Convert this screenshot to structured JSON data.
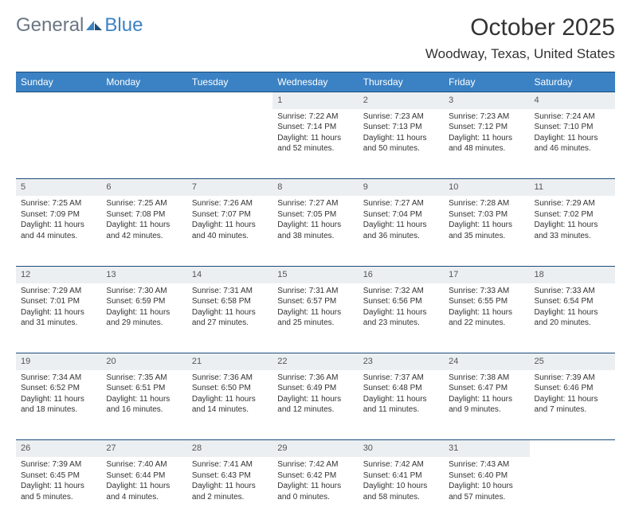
{
  "logo": {
    "text1": "General",
    "text2": "Blue"
  },
  "title": "October 2025",
  "location": "Woodway, Texas, United States",
  "colors": {
    "header_bg": "#3b82c4",
    "header_text": "#ffffff",
    "border": "#1b4c7a",
    "daynum_bg": "#eceff1",
    "text": "#333333",
    "logo_gray": "#6b7684",
    "logo_blue": "#3b82c4",
    "page_bg": "#ffffff"
  },
  "weekdays": [
    "Sunday",
    "Monday",
    "Tuesday",
    "Wednesday",
    "Thursday",
    "Friday",
    "Saturday"
  ],
  "weeks": [
    [
      null,
      null,
      null,
      {
        "d": "1",
        "sr": "7:22 AM",
        "ss": "7:14 PM",
        "dl": "11 hours and 52 minutes."
      },
      {
        "d": "2",
        "sr": "7:23 AM",
        "ss": "7:13 PM",
        "dl": "11 hours and 50 minutes."
      },
      {
        "d": "3",
        "sr": "7:23 AM",
        "ss": "7:12 PM",
        "dl": "11 hours and 48 minutes."
      },
      {
        "d": "4",
        "sr": "7:24 AM",
        "ss": "7:10 PM",
        "dl": "11 hours and 46 minutes."
      }
    ],
    [
      {
        "d": "5",
        "sr": "7:25 AM",
        "ss": "7:09 PM",
        "dl": "11 hours and 44 minutes."
      },
      {
        "d": "6",
        "sr": "7:25 AM",
        "ss": "7:08 PM",
        "dl": "11 hours and 42 minutes."
      },
      {
        "d": "7",
        "sr": "7:26 AM",
        "ss": "7:07 PM",
        "dl": "11 hours and 40 minutes."
      },
      {
        "d": "8",
        "sr": "7:27 AM",
        "ss": "7:05 PM",
        "dl": "11 hours and 38 minutes."
      },
      {
        "d": "9",
        "sr": "7:27 AM",
        "ss": "7:04 PM",
        "dl": "11 hours and 36 minutes."
      },
      {
        "d": "10",
        "sr": "7:28 AM",
        "ss": "7:03 PM",
        "dl": "11 hours and 35 minutes."
      },
      {
        "d": "11",
        "sr": "7:29 AM",
        "ss": "7:02 PM",
        "dl": "11 hours and 33 minutes."
      }
    ],
    [
      {
        "d": "12",
        "sr": "7:29 AM",
        "ss": "7:01 PM",
        "dl": "11 hours and 31 minutes."
      },
      {
        "d": "13",
        "sr": "7:30 AM",
        "ss": "6:59 PM",
        "dl": "11 hours and 29 minutes."
      },
      {
        "d": "14",
        "sr": "7:31 AM",
        "ss": "6:58 PM",
        "dl": "11 hours and 27 minutes."
      },
      {
        "d": "15",
        "sr": "7:31 AM",
        "ss": "6:57 PM",
        "dl": "11 hours and 25 minutes."
      },
      {
        "d": "16",
        "sr": "7:32 AM",
        "ss": "6:56 PM",
        "dl": "11 hours and 23 minutes."
      },
      {
        "d": "17",
        "sr": "7:33 AM",
        "ss": "6:55 PM",
        "dl": "11 hours and 22 minutes."
      },
      {
        "d": "18",
        "sr": "7:33 AM",
        "ss": "6:54 PM",
        "dl": "11 hours and 20 minutes."
      }
    ],
    [
      {
        "d": "19",
        "sr": "7:34 AM",
        "ss": "6:52 PM",
        "dl": "11 hours and 18 minutes."
      },
      {
        "d": "20",
        "sr": "7:35 AM",
        "ss": "6:51 PM",
        "dl": "11 hours and 16 minutes."
      },
      {
        "d": "21",
        "sr": "7:36 AM",
        "ss": "6:50 PM",
        "dl": "11 hours and 14 minutes."
      },
      {
        "d": "22",
        "sr": "7:36 AM",
        "ss": "6:49 PM",
        "dl": "11 hours and 12 minutes."
      },
      {
        "d": "23",
        "sr": "7:37 AM",
        "ss": "6:48 PM",
        "dl": "11 hours and 11 minutes."
      },
      {
        "d": "24",
        "sr": "7:38 AM",
        "ss": "6:47 PM",
        "dl": "11 hours and 9 minutes."
      },
      {
        "d": "25",
        "sr": "7:39 AM",
        "ss": "6:46 PM",
        "dl": "11 hours and 7 minutes."
      }
    ],
    [
      {
        "d": "26",
        "sr": "7:39 AM",
        "ss": "6:45 PM",
        "dl": "11 hours and 5 minutes."
      },
      {
        "d": "27",
        "sr": "7:40 AM",
        "ss": "6:44 PM",
        "dl": "11 hours and 4 minutes."
      },
      {
        "d": "28",
        "sr": "7:41 AM",
        "ss": "6:43 PM",
        "dl": "11 hours and 2 minutes."
      },
      {
        "d": "29",
        "sr": "7:42 AM",
        "ss": "6:42 PM",
        "dl": "11 hours and 0 minutes."
      },
      {
        "d": "30",
        "sr": "7:42 AM",
        "ss": "6:41 PM",
        "dl": "10 hours and 58 minutes."
      },
      {
        "d": "31",
        "sr": "7:43 AM",
        "ss": "6:40 PM",
        "dl": "10 hours and 57 minutes."
      },
      null
    ]
  ],
  "labels": {
    "sunrise": "Sunrise:",
    "sunset": "Sunset:",
    "daylight": "Daylight:"
  }
}
